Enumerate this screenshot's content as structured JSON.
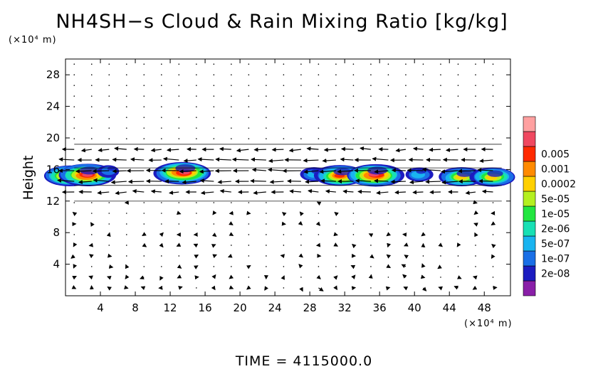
{
  "chart_data": {
    "type": "heatmap",
    "title": "NH4SH−s Cloud & Rain Mixing Ratio [kg/kg]",
    "ylabel": "Height",
    "y_unit": "(×10⁴ m)",
    "x_unit": "(×10⁴ m)",
    "xlim": [
      0,
      51
    ],
    "ylim": [
      0,
      30
    ],
    "x_ticks": [
      4,
      8,
      12,
      16,
      20,
      24,
      28,
      32,
      36,
      40,
      44,
      48
    ],
    "y_ticks": [
      4,
      8,
      12,
      16,
      20,
      24,
      28
    ],
    "colorbar": {
      "labels": [
        "2e-08",
        "1e-07",
        "5e-07",
        "2e-06",
        "1e-05",
        "5e-05",
        "0.0002",
        "0.001",
        "0.005"
      ],
      "colors": [
        "#8a1fa8",
        "#1c1cc0",
        "#1a6fe6",
        "#19b4f0",
        "#18e0b4",
        "#22e640",
        "#b4f020",
        "#ffd000",
        "#ff8a00",
        "#ff2a00",
        "#f04860",
        "#ffa0a0"
      ]
    },
    "cloud_cells": [
      {
        "x": 0.5,
        "y": 15.2,
        "max": "5e-05"
      },
      {
        "x": 2.5,
        "y": 15.3,
        "max": "0.0002"
      },
      {
        "x": 5.0,
        "y": 15.8,
        "max": "5e-06"
      },
      {
        "x": 13.5,
        "y": 15.6,
        "max": "0.0002"
      },
      {
        "x": 28.5,
        "y": 15.4,
        "max": "1e-07"
      },
      {
        "x": 31.5,
        "y": 15.2,
        "max": "5e-05"
      },
      {
        "x": 35.5,
        "y": 15.3,
        "max": "0.0002"
      },
      {
        "x": 40.5,
        "y": 15.4,
        "max": "1e-07"
      },
      {
        "x": 45.5,
        "y": 15.0,
        "max": "1e-05"
      },
      {
        "x": 49.0,
        "y": 15.0,
        "max": "1e-05"
      }
    ],
    "grid": false
  },
  "footer": {
    "time_label": "TIME  =  4115000.0"
  }
}
